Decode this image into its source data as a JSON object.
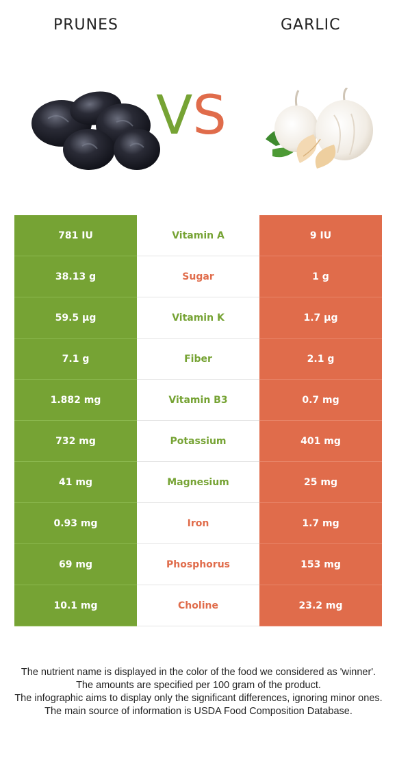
{
  "header": {
    "left_food": "PRUNES",
    "right_food": "GARLIC",
    "vs_v": "V",
    "vs_s": "S"
  },
  "colors": {
    "left_winner": "#76a334",
    "right_winner": "#e06c4b"
  },
  "rows": [
    {
      "left": "781 IU",
      "nutrient": "Vitamin A",
      "right": "9 IU",
      "winner": "left"
    },
    {
      "left": "38.13 g",
      "nutrient": "Sugar",
      "right": "1 g",
      "winner": "right"
    },
    {
      "left": "59.5 µg",
      "nutrient": "Vitamin K",
      "right": "1.7 µg",
      "winner": "left"
    },
    {
      "left": "7.1 g",
      "nutrient": "Fiber",
      "right": "2.1 g",
      "winner": "left"
    },
    {
      "left": "1.882 mg",
      "nutrient": "Vitamin B3",
      "right": "0.7 mg",
      "winner": "left"
    },
    {
      "left": "732 mg",
      "nutrient": "Potassium",
      "right": "401 mg",
      "winner": "left"
    },
    {
      "left": "41 mg",
      "nutrient": "Magnesium",
      "right": "25 mg",
      "winner": "left"
    },
    {
      "left": "0.93 mg",
      "nutrient": "Iron",
      "right": "1.7 mg",
      "winner": "right"
    },
    {
      "left": "69 mg",
      "nutrient": "Phosphorus",
      "right": "153 mg",
      "winner": "right"
    },
    {
      "left": "10.1 mg",
      "nutrient": "Choline",
      "right": "23.2 mg",
      "winner": "right"
    }
  ],
  "footer": {
    "line1": "The nutrient name is displayed in the color of the food we considered as 'winner'.",
    "line2": "The amounts are specified per 100 gram of the product.",
    "line3": "The infographic aims to display only the significant differences, ignoring minor ones.",
    "line4": "The main source of information is USDA Food Composition Database."
  }
}
